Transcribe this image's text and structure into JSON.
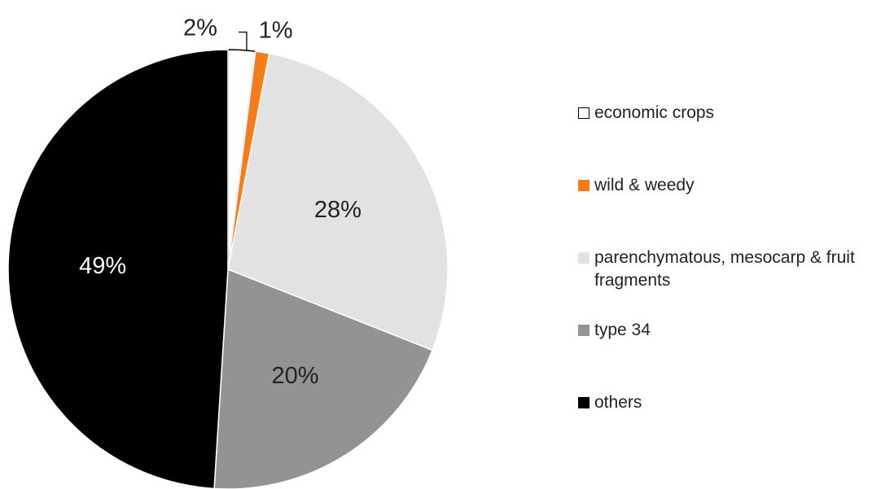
{
  "chart_data": {
    "type": "pie",
    "title": "",
    "start_angle_deg": 0,
    "direction": "clockwise",
    "legend_position": "right",
    "slices": [
      {
        "name": "economic crops",
        "value": 2,
        "label": "2%",
        "color": "#ffffff",
        "border": "#000000",
        "label_color": "#222222",
        "label_placement": "outside-leader"
      },
      {
        "name": "wild & weedy",
        "value": 1,
        "label": "1%",
        "color": "#f47c1b",
        "border": "#ffffff",
        "label_color": "#222222",
        "label_placement": "outside"
      },
      {
        "name": "parenchymatous, mesocarp & fruit fragments",
        "value": 28,
        "label": "28%",
        "color": "#e2e2e2",
        "border": "#ffffff",
        "label_color": "#222222",
        "label_placement": "inside"
      },
      {
        "name": "type 34",
        "value": 20,
        "label": "20%",
        "color": "#939393",
        "border": "#ffffff",
        "label_color": "#222222",
        "label_placement": "inside"
      },
      {
        "name": "others",
        "value": 49,
        "label": "49%",
        "color": "#000000",
        "border": "#ffffff",
        "label_color": "#ffffff",
        "label_placement": "inside"
      }
    ]
  }
}
